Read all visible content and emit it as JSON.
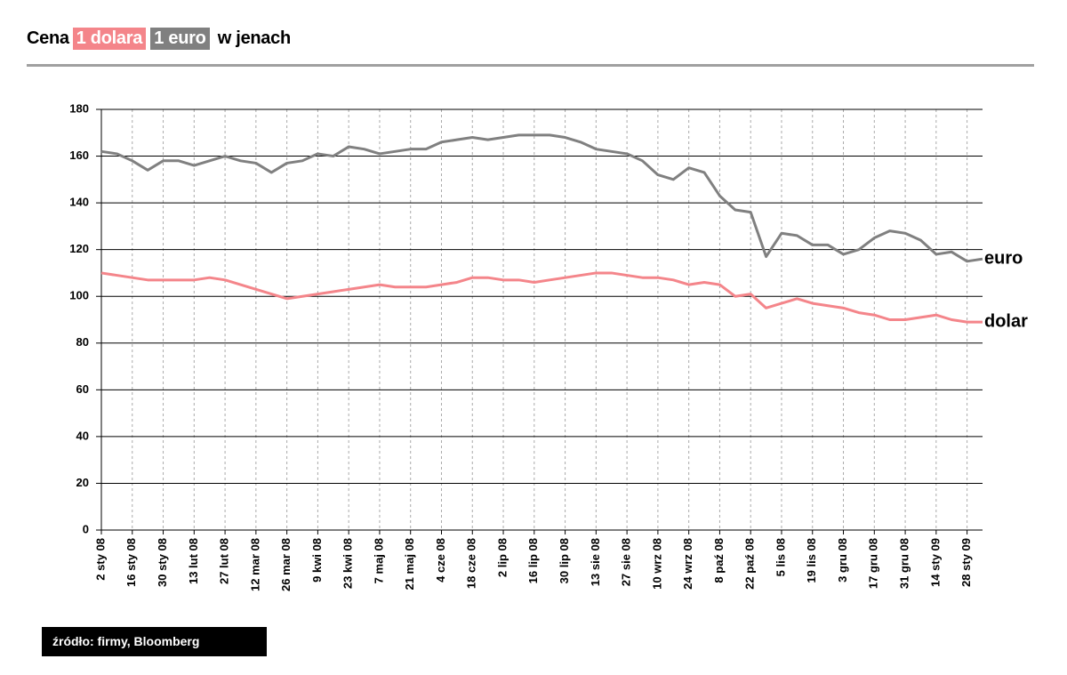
{
  "chart_data": {
    "type": "line",
    "title_prefix": "Cena",
    "title_suffix": "w jenach",
    "source": "źródło: firmy, Bloomberg",
    "categories": [
      "2 sty 08",
      null,
      "16 sty 08",
      null,
      "30 sty 08",
      null,
      "13 lut 08",
      null,
      "27 lut 08",
      null,
      "12 mar 08",
      null,
      "26 mar 08",
      null,
      "9 kwi 08",
      null,
      "23 kwi 08",
      null,
      "7 maj 08",
      null,
      "21 maj 08",
      null,
      "4 cze 08",
      null,
      "18 cze 08",
      null,
      "2 lip 08",
      null,
      "16 lip 08",
      null,
      "30 lip 08",
      null,
      "13 sie 08",
      null,
      "27 sie 08",
      null,
      "10 wrz 08",
      null,
      "24 wrz 08",
      null,
      "8 paź 08",
      null,
      "22 paź 08",
      null,
      "5 lis 08",
      null,
      "19 lis 08",
      null,
      "3 gru 08",
      null,
      "17 gru 08",
      null,
      "31 gru 08",
      null,
      "14 sty 09",
      null,
      "28 sty 09",
      null
    ],
    "series": [
      {
        "name": "euro",
        "title_label": "1 euro",
        "color": "#808080",
        "values": [
          162,
          161,
          158,
          154,
          158,
          158,
          156,
          158,
          160,
          158,
          157,
          153,
          157,
          158,
          161,
          160,
          164,
          163,
          161,
          162,
          163,
          163,
          166,
          167,
          168,
          167,
          168,
          169,
          169,
          169,
          168,
          166,
          163,
          162,
          161,
          158,
          152,
          150,
          155,
          153,
          143,
          137,
          136,
          117,
          127,
          126,
          122,
          122,
          118,
          120,
          125,
          128,
          127,
          124,
          118,
          119,
          115,
          116
        ]
      },
      {
        "name": "dolar",
        "title_label": "1 dolara",
        "color": "#f4858a",
        "values": [
          110,
          109,
          108,
          107,
          107,
          107,
          107,
          108,
          107,
          105,
          103,
          101,
          99,
          100,
          101,
          102,
          103,
          104,
          105,
          104,
          104,
          104,
          105,
          106,
          108,
          108,
          107,
          107,
          106,
          107,
          108,
          109,
          110,
          110,
          109,
          108,
          108,
          107,
          105,
          106,
          105,
          100,
          101,
          95,
          97,
          99,
          97,
          96,
          95,
          93,
          92,
          90,
          90,
          91,
          92,
          90,
          89,
          89
        ]
      }
    ],
    "ylim": [
      0,
      180
    ],
    "yticks": [
      0,
      20,
      40,
      60,
      80,
      100,
      120,
      140,
      160,
      180
    ],
    "grid": true
  }
}
